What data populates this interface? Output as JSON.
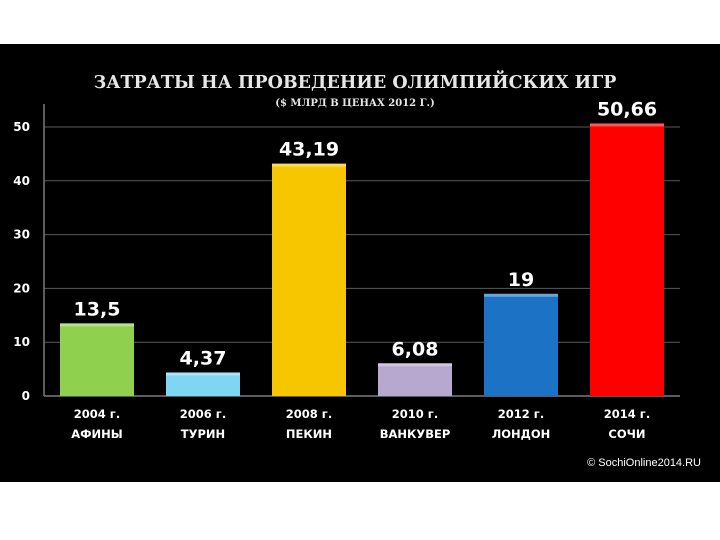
{
  "chart_data": {
    "type": "bar",
    "title": "ЗАТРАТЫ НА ПРОВЕДЕНИЕ ОЛИМПИЙСКИХ ИГР",
    "subtitle": "($ МЛРД В ЦЕНАХ 2012 Г.)",
    "categories": [
      {
        "year": "2004 г.",
        "city": "АФИНЫ"
      },
      {
        "year": "2006 г.",
        "city": "ТУРИН"
      },
      {
        "year": "2008 г.",
        "city": "ПЕКИН"
      },
      {
        "year": "2010 г.",
        "city": "ВАНКУВЕР"
      },
      {
        "year": "2012 г.",
        "city": "ЛОНДОН"
      },
      {
        "year": "2014 г.",
        "city": "СОЧИ"
      }
    ],
    "values": [
      13.5,
      4.37,
      43.19,
      6.08,
      19,
      50.66
    ],
    "value_labels": [
      "13,5",
      "4,37",
      "43,19",
      "6,08",
      "19",
      "50,66"
    ],
    "colors": [
      "#8fd14f",
      "#7fd6f2",
      "#f7c600",
      "#b7a8d0",
      "#1c73c6",
      "#ff0000"
    ],
    "yticks": [
      "0",
      "10",
      "20",
      "30",
      "40",
      "50"
    ],
    "ytick_values": [
      0,
      10,
      20,
      30,
      40,
      50
    ],
    "ylim": [
      0,
      50.66
    ],
    "grid": true,
    "legend": "none"
  },
  "copyright": "© SochiOnline2014.RU"
}
